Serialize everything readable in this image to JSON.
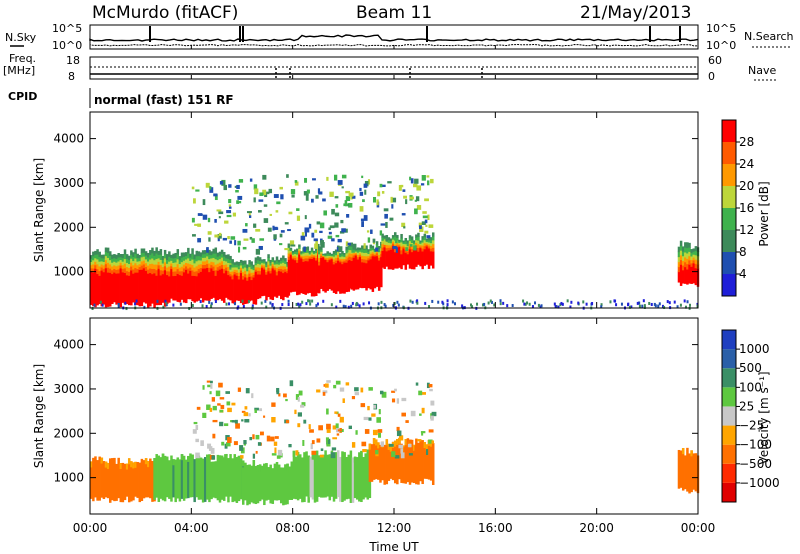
{
  "header": {
    "station": "McMurdo (fitACF)",
    "beam": "Beam 11",
    "date": "21/May/2013"
  },
  "status": {
    "left_label_1": "N.Sky",
    "left_label_2a": "Freq.",
    "left_label_2b": "[MHz]",
    "left_label_3": "CPID",
    "left_ticks_sky": [
      "10^5",
      "10^0"
    ],
    "left_ticks_freq": [
      "18",
      "8"
    ],
    "right_ticks_sky": [
      "10^5",
      "10^0"
    ],
    "right_ticks_nave": [
      "60",
      "0"
    ],
    "right_label_1": "N.Search",
    "right_label_2": "Nave",
    "cpid_text": "normal (fast) 151 RF"
  },
  "colors": {
    "power": [
      "#1f1fd8",
      "#1f4fb0",
      "#3d8a5a",
      "#3fb24d",
      "#bdd63a",
      "#ff9900",
      "#ff5a00",
      "#ff0000"
    ],
    "velocity": [
      "#1f3fc0",
      "#2a5fa8",
      "#3a8f66",
      "#5ec840",
      "#c8c8c8",
      "#ffa500",
      "#ff7000",
      "#ff2a00",
      "#e00000"
    ]
  },
  "chart_data": [
    {
      "type": "heatmap",
      "panel": "power",
      "ylabel": "Slant Range [km]",
      "xlabel": "Time UT",
      "x_ticks": [
        "00:00",
        "04:00",
        "08:00",
        "12:00",
        "16:00",
        "20:00",
        "00:00"
      ],
      "y_ticks": [
        1000,
        2000,
        3000,
        4000
      ],
      "xlim": [
        0,
        24
      ],
      "ylim": [
        180,
        4600
      ],
      "colorbar_label": "Power [dB]",
      "colorbar_ticks": [
        "4",
        "8",
        "12",
        "16",
        "20",
        "24",
        "28"
      ],
      "segments": [
        {
          "t0": 0.0,
          "t1": 3.0,
          "core": [
            250,
            1000
          ],
          "upper": 1450
        },
        {
          "t0": 3.0,
          "t1": 5.5,
          "core": [
            350,
            1000
          ],
          "upper": 1450
        },
        {
          "t0": 5.5,
          "t1": 6.5,
          "core": [
            300,
            900
          ],
          "upper": 1250
        },
        {
          "t0": 6.5,
          "t1": 7.8,
          "core": [
            400,
            1000
          ],
          "upper": 1300
        },
        {
          "t0": 7.8,
          "t1": 9.0,
          "core": [
            500,
            1300
          ],
          "upper": 1550
        },
        {
          "t0": 9.0,
          "t1": 10.2,
          "core": [
            550,
            1250
          ],
          "upper": 1500
        },
        {
          "t0": 10.2,
          "t1": 11.5,
          "core": [
            600,
            1300
          ],
          "upper": 1600
        },
        {
          "t0": 11.5,
          "t1": 13.5,
          "core": [
            1100,
            1500
          ],
          "upper": 1800
        },
        {
          "t0": 23.2,
          "t1": 24.0,
          "core": [
            700,
            1100
          ],
          "upper": 1600
        }
      ]
    },
    {
      "type": "heatmap",
      "panel": "velocity",
      "ylabel": "Slant Range [km]",
      "xlabel": "Time UT",
      "x_ticks": [
        "00:00",
        "04:00",
        "08:00",
        "12:00",
        "16:00",
        "20:00",
        "00:00"
      ],
      "y_ticks": [
        1000,
        2000,
        3000,
        4000
      ],
      "xlim": [
        0,
        24
      ],
      "ylim": [
        180,
        4600
      ],
      "colorbar_label": "Velocity [m s⁻¹]",
      "colorbar_ticks": [
        "1000",
        "500",
        "100",
        "25",
        "−25",
        "−100",
        "−500",
        "−1000"
      ],
      "segments": [
        {
          "t0": 0.0,
          "t1": 2.5,
          "v": -300,
          "range": [
            500,
            1400
          ]
        },
        {
          "t0": 2.5,
          "t1": 6.0,
          "v": 80,
          "range": [
            500,
            1450
          ]
        },
        {
          "t0": 6.0,
          "t1": 8.0,
          "v": 60,
          "range": [
            450,
            1300
          ]
        },
        {
          "t0": 8.0,
          "t1": 11.0,
          "v": 50,
          "range": [
            500,
            1550
          ]
        },
        {
          "t0": 11.0,
          "t1": 13.5,
          "v": -150,
          "range": [
            900,
            1800
          ]
        },
        {
          "t0": 23.2,
          "t1": 24.0,
          "v": -400,
          "range": [
            700,
            1600
          ]
        }
      ]
    }
  ]
}
